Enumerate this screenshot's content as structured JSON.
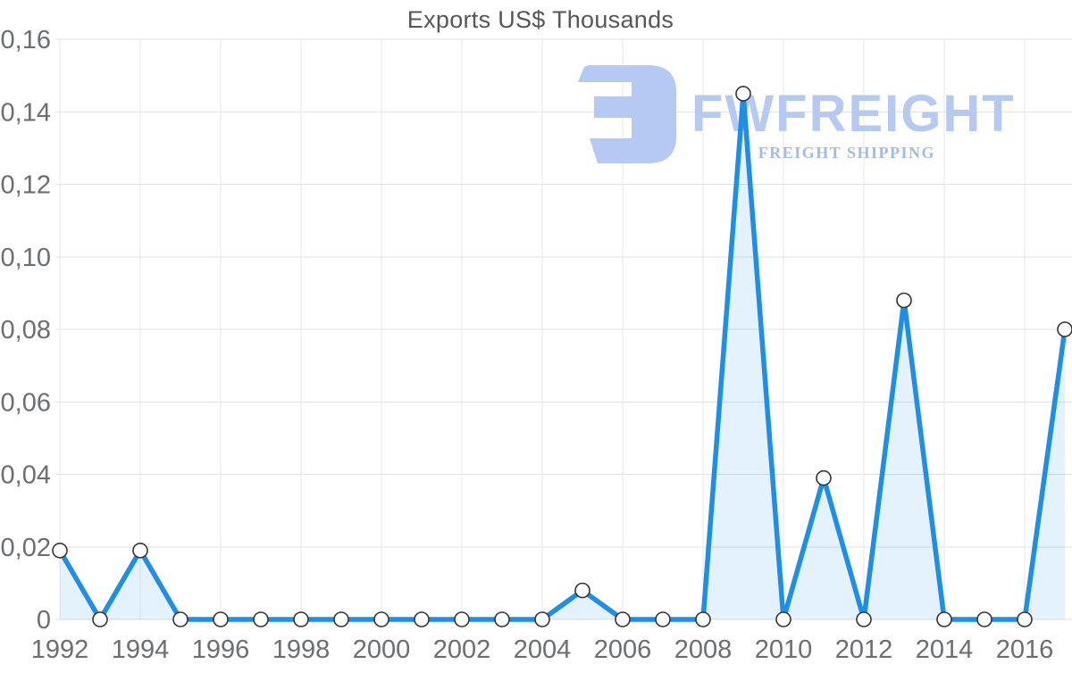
{
  "chart_data": {
    "type": "area",
    "title": "Exports US$ Thousands",
    "xlabel": "",
    "ylabel": "",
    "x": [
      1992,
      1993,
      1994,
      1995,
      1996,
      1997,
      1998,
      1999,
      2000,
      2001,
      2002,
      2003,
      2004,
      2005,
      2006,
      2007,
      2008,
      2009,
      2010,
      2011,
      2012,
      2013,
      2014,
      2015,
      2016,
      2017
    ],
    "values": [
      0.019,
      0,
      0.019,
      0,
      0,
      0,
      0,
      0,
      0,
      0,
      0,
      0,
      0,
      0.008,
      0,
      0,
      0,
      0.145,
      0,
      0.039,
      0,
      0.088,
      0,
      0,
      0,
      0.08
    ],
    "ylim": [
      0,
      0.16
    ],
    "xlim": [
      1992,
      2017
    ],
    "grid": true,
    "legend_position": "none",
    "decimal_separator": ",",
    "y_ticks": [
      {
        "value": 0.0,
        "label": "0"
      },
      {
        "value": 0.02,
        "label": "0,02"
      },
      {
        "value": 0.04,
        "label": "0,04"
      },
      {
        "value": 0.06,
        "label": "0,06"
      },
      {
        "value": 0.08,
        "label": "0,08"
      },
      {
        "value": 0.1,
        "label": "0,10"
      },
      {
        "value": 0.12,
        "label": "0,12"
      },
      {
        "value": 0.14,
        "label": "0,14"
      },
      {
        "value": 0.16,
        "label": "0,16"
      }
    ],
    "x_ticks": [
      {
        "value": 1992,
        "label": "1992"
      },
      {
        "value": 1994,
        "label": "1994"
      },
      {
        "value": 1996,
        "label": "1996"
      },
      {
        "value": 1998,
        "label": "1998"
      },
      {
        "value": 2000,
        "label": "2000"
      },
      {
        "value": 2002,
        "label": "2002"
      },
      {
        "value": 2004,
        "label": "2004"
      },
      {
        "value": 2006,
        "label": "2006"
      },
      {
        "value": 2008,
        "label": "2008"
      },
      {
        "value": 2010,
        "label": "2010"
      },
      {
        "value": 2012,
        "label": "2012"
      },
      {
        "value": 2014,
        "label": "2014"
      },
      {
        "value": 2016,
        "label": "2016"
      }
    ],
    "colors": {
      "line": "#1d8fe8",
      "fill": "rgba(30,144,235,0.12)",
      "marker_fill": "#ffffff",
      "marker_stroke": "#333333",
      "grid": "#e1e1e1",
      "grid_vertical": "#e7e7e7",
      "tick_label": "#6d6e70",
      "title": "#575757",
      "watermark": "#b5c9f2",
      "watermark_tagline": "#9fbbee"
    }
  },
  "watermark": {
    "brand": "FWFREIGHT",
    "tagline": "FREIGHT SHIPPING",
    "logo_icon": "fwfreight-logo-icon"
  }
}
